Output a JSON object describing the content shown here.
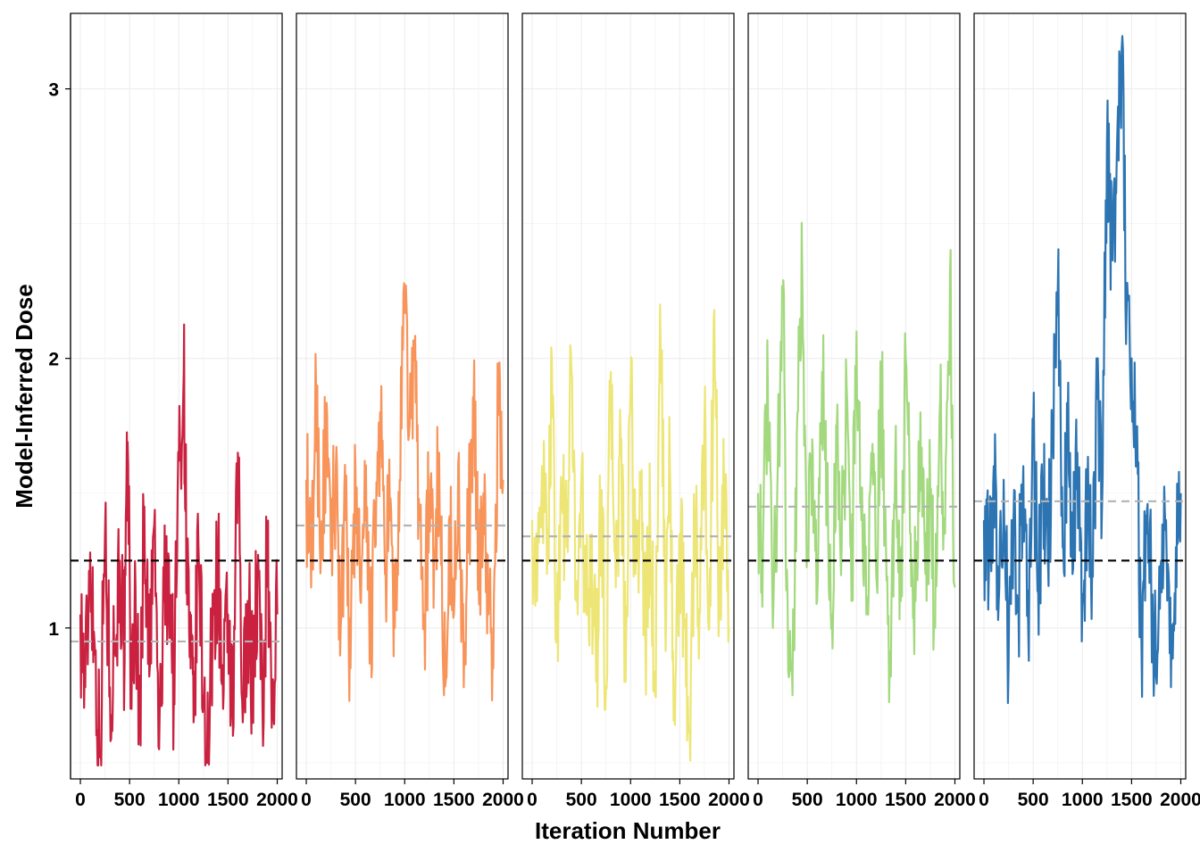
{
  "chart_data": {
    "type": "line",
    "facets": 5,
    "xlabel": "Iteration Number",
    "ylabel": "Model-Inferred Dose",
    "xlim": [
      -100,
      2050
    ],
    "ylim": [
      0.44,
      3.28
    ],
    "xticks": [
      0,
      500,
      1000,
      1500,
      2000
    ],
    "xtick_labels": [
      "0",
      "500",
      "1000",
      "1500",
      "2000"
    ],
    "yticks": [
      1,
      2,
      3
    ],
    "ytick_labels": [
      "1",
      "2",
      "3"
    ],
    "grid": true,
    "reference_line": {
      "value": 1.25,
      "style": "dashed",
      "color": "#000000"
    },
    "series": [
      {
        "color": "#c9213f",
        "mean": 0.95,
        "trace": [
          [
            0,
            1.05
          ],
          [
            50,
            0.78
          ],
          [
            100,
            1.28
          ],
          [
            150,
            0.9
          ],
          [
            200,
            0.52
          ],
          [
            250,
            1.35
          ],
          [
            300,
            0.78
          ],
          [
            350,
            0.95
          ],
          [
            400,
            1.25
          ],
          [
            450,
            0.88
          ],
          [
            480,
            1.69
          ],
          [
            520,
            0.7
          ],
          [
            560,
            1.15
          ],
          [
            600,
            0.6
          ],
          [
            650,
            1.45
          ],
          [
            700,
            0.82
          ],
          [
            750,
            1.38
          ],
          [
            800,
            0.55
          ],
          [
            850,
            1.1
          ],
          [
            900,
            1.25
          ],
          [
            950,
            0.75
          ],
          [
            1000,
            1.62
          ],
          [
            1050,
            1.95
          ],
          [
            1080,
            1.3
          ],
          [
            1120,
            0.85
          ],
          [
            1150,
            0.65
          ],
          [
            1200,
            1.3
          ],
          [
            1250,
            0.75
          ],
          [
            1300,
            0.55
          ],
          [
            1350,
            1.05
          ],
          [
            1400,
            1.25
          ],
          [
            1450,
            0.7
          ],
          [
            1500,
            1.05
          ],
          [
            1550,
            0.6
          ],
          [
            1600,
            1.65
          ],
          [
            1650,
            0.65
          ],
          [
            1700,
            1.1
          ],
          [
            1750,
            0.8
          ],
          [
            1800,
            1.2
          ],
          [
            1850,
            0.7
          ],
          [
            1900,
            1.3
          ],
          [
            1950,
            0.7
          ],
          [
            2000,
            1.05
          ]
        ]
      },
      {
        "color": "#f8945a",
        "mean": 1.38,
        "trace": [
          [
            0,
            1.55
          ],
          [
            50,
            1.15
          ],
          [
            100,
            1.9
          ],
          [
            150,
            1.3
          ],
          [
            200,
            1.7
          ],
          [
            250,
            1.25
          ],
          [
            300,
            1.6
          ],
          [
            350,
            1.0
          ],
          [
            400,
            1.4
          ],
          [
            450,
            0.85
          ],
          [
            500,
            1.6
          ],
          [
            550,
            1.1
          ],
          [
            600,
            1.4
          ],
          [
            650,
            1.0
          ],
          [
            700,
            1.3
          ],
          [
            750,
            1.8
          ],
          [
            800,
            1.2
          ],
          [
            850,
            1.4
          ],
          [
            900,
            1.0
          ],
          [
            950,
            1.55
          ],
          [
            1000,
            2.2
          ],
          [
            1050,
            1.75
          ],
          [
            1100,
            2.0
          ],
          [
            1150,
            1.4
          ],
          [
            1200,
            1.05
          ],
          [
            1250,
            1.5
          ],
          [
            1300,
            1.25
          ],
          [
            1350,
            1.65
          ],
          [
            1400,
            0.75
          ],
          [
            1450,
            1.4
          ],
          [
            1500,
            1.05
          ],
          [
            1550,
            1.65
          ],
          [
            1600,
            0.78
          ],
          [
            1650,
            1.4
          ],
          [
            1700,
            1.8
          ],
          [
            1750,
            1.2
          ],
          [
            1800,
            1.5
          ],
          [
            1850,
            1.05
          ],
          [
            1900,
            0.85
          ],
          [
            1950,
            1.9
          ],
          [
            2000,
            1.55
          ]
        ]
      },
      {
        "color": "#ede676",
        "mean": 1.34,
        "trace": [
          [
            0,
            1.4
          ],
          [
            50,
            1.1
          ],
          [
            100,
            1.6
          ],
          [
            150,
            1.2
          ],
          [
            200,
            2.0
          ],
          [
            250,
            0.95
          ],
          [
            300,
            1.5
          ],
          [
            350,
            1.3
          ],
          [
            400,
            1.95
          ],
          [
            450,
            1.1
          ],
          [
            500,
            1.55
          ],
          [
            550,
            1.05
          ],
          [
            600,
            1.3
          ],
          [
            650,
            0.8
          ],
          [
            700,
            1.5
          ],
          [
            750,
            0.78
          ],
          [
            800,
            1.95
          ],
          [
            850,
            1.15
          ],
          [
            900,
            1.7
          ],
          [
            950,
            0.8
          ],
          [
            1000,
            1.9
          ],
          [
            1050,
            1.2
          ],
          [
            1100,
            1.5
          ],
          [
            1150,
            0.95
          ],
          [
            1200,
            1.4
          ],
          [
            1250,
            0.75
          ],
          [
            1300,
            2.2
          ],
          [
            1350,
            1.1
          ],
          [
            1400,
            1.6
          ],
          [
            1450,
            0.64
          ],
          [
            1500,
            1.35
          ],
          [
            1550,
            1.0
          ],
          [
            1600,
            0.62
          ],
          [
            1650,
            1.4
          ],
          [
            1700,
            1.05
          ],
          [
            1750,
            1.75
          ],
          [
            1800,
            1.0
          ],
          [
            1850,
            2.18
          ],
          [
            1900,
            1.1
          ],
          [
            1950,
            1.5
          ],
          [
            2000,
            1.0
          ]
        ]
      },
      {
        "color": "#a3d97e",
        "mean": 1.45,
        "trace": [
          [
            0,
            1.5
          ],
          [
            50,
            1.3
          ],
          [
            100,
            1.9
          ],
          [
            150,
            1.0
          ],
          [
            200,
            1.6
          ],
          [
            250,
            2.25
          ],
          [
            300,
            1.1
          ],
          [
            350,
            0.75
          ],
          [
            400,
            1.8
          ],
          [
            450,
            2.3
          ],
          [
            500,
            1.3
          ],
          [
            550,
            1.7
          ],
          [
            600,
            1.1
          ],
          [
            650,
            1.95
          ],
          [
            700,
            1.4
          ],
          [
            750,
            1.05
          ],
          [
            800,
            1.75
          ],
          [
            850,
            1.3
          ],
          [
            900,
            1.9
          ],
          [
            950,
            1.1
          ],
          [
            1000,
            2.1
          ],
          [
            1050,
            1.4
          ],
          [
            1100,
            1.05
          ],
          [
            1150,
            1.65
          ],
          [
            1200,
            1.2
          ],
          [
            1250,
            1.9
          ],
          [
            1300,
            1.3
          ],
          [
            1350,
            0.82
          ],
          [
            1400,
            1.75
          ],
          [
            1450,
            1.1
          ],
          [
            1500,
            2.0
          ],
          [
            1550,
            1.35
          ],
          [
            1600,
            1.1
          ],
          [
            1650,
            1.8
          ],
          [
            1700,
            1.2
          ],
          [
            1750,
            1.5
          ],
          [
            1800,
            1.0
          ],
          [
            1850,
            1.85
          ],
          [
            1900,
            1.35
          ],
          [
            1950,
            2.32
          ],
          [
            2000,
            1.15
          ]
        ]
      },
      {
        "color": "#2c74b2",
        "mean": 1.47,
        "trace": [
          [
            0,
            1.4
          ],
          [
            50,
            1.2
          ],
          [
            100,
            1.6
          ],
          [
            150,
            1.1
          ],
          [
            200,
            1.55
          ],
          [
            250,
            0.85
          ],
          [
            300,
            1.4
          ],
          [
            350,
            1.1
          ],
          [
            400,
            1.6
          ],
          [
            450,
            1.0
          ],
          [
            500,
            1.7
          ],
          [
            550,
            1.15
          ],
          [
            600,
            1.5
          ],
          [
            650,
            1.25
          ],
          [
            700,
            1.7
          ],
          [
            750,
            2.25
          ],
          [
            800,
            1.3
          ],
          [
            850,
            1.7
          ],
          [
            900,
            1.2
          ],
          [
            950,
            1.65
          ],
          [
            1000,
            1.1
          ],
          [
            1050,
            1.5
          ],
          [
            1100,
            1.25
          ],
          [
            1150,
            1.85
          ],
          [
            1200,
            1.45
          ],
          [
            1250,
            2.8
          ],
          [
            1300,
            2.4
          ],
          [
            1350,
            2.75
          ],
          [
            1400,
            3.15
          ],
          [
            1450,
            2.2
          ],
          [
            1500,
            2.0
          ],
          [
            1550,
            1.7
          ],
          [
            1600,
            0.95
          ],
          [
            1650,
            1.35
          ],
          [
            1700,
            1.15
          ],
          [
            1750,
            0.82
          ],
          [
            1800,
            1.25
          ],
          [
            1850,
            1.4
          ],
          [
            1900,
            0.78
          ],
          [
            1950,
            1.3
          ],
          [
            2000,
            1.5
          ]
        ]
      }
    ]
  }
}
